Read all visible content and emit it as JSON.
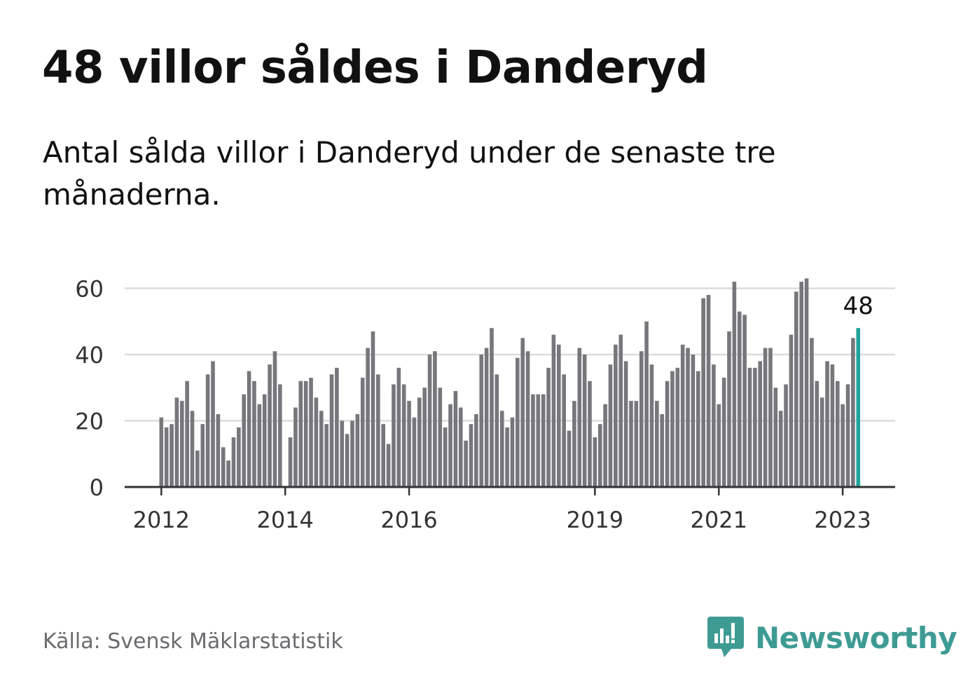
{
  "title": "48 villor såldes i Danderyd",
  "subtitle": "Antal sålda villor i Danderyd under de senaste tre månaderna.",
  "source": "Källa: Svensk Mäklarstatistik",
  "brand": "Newsworthy",
  "colors": {
    "bar": "#77767b",
    "highlight": "#1fa39b",
    "grid": "#dcdcdc",
    "axis": "#333333",
    "brand": "#3e9b94",
    "text": "#111111",
    "muted": "#6b6b70"
  },
  "icons": [
    "newsworthy-logo-icon"
  ],
  "chart_data": {
    "type": "bar",
    "title": "48 villor såldes i Danderyd",
    "xlabel": "",
    "ylabel": "",
    "ylim": [
      0,
      63
    ],
    "yticks": [
      0,
      20,
      40,
      60
    ],
    "xticks": [
      {
        "label": "2012",
        "index": 0
      },
      {
        "label": "2014",
        "index": 24
      },
      {
        "label": "2016",
        "index": 48
      },
      {
        "label": "2019",
        "index": 84
      },
      {
        "label": "2021",
        "index": 108
      },
      {
        "label": "2023",
        "index": 132
      }
    ],
    "start": "2012-01",
    "highlight_index": 135,
    "highlight_label": "48",
    "values": [
      21,
      18,
      19,
      27,
      26,
      32,
      23,
      11,
      19,
      34,
      38,
      22,
      12,
      8,
      15,
      18,
      28,
      35,
      32,
      25,
      28,
      37,
      41,
      31,
      0,
      15,
      24,
      32,
      32,
      33,
      27,
      23,
      19,
      34,
      36,
      20,
      16,
      20,
      22,
      33,
      42,
      47,
      34,
      19,
      13,
      31,
      36,
      31,
      26,
      21,
      27,
      30,
      40,
      41,
      30,
      18,
      25,
      29,
      24,
      14,
      19,
      22,
      40,
      42,
      48,
      34,
      23,
      18,
      21,
      39,
      45,
      41,
      28,
      28,
      28,
      36,
      46,
      43,
      34,
      17,
      26,
      42,
      40,
      32,
      15,
      19,
      25,
      37,
      43,
      46,
      38,
      26,
      26,
      41,
      50,
      37,
      26,
      22,
      32,
      35,
      36,
      43,
      42,
      40,
      35,
      57,
      58,
      37,
      25,
      33,
      47,
      62,
      53,
      52,
      36,
      36,
      38,
      42,
      42,
      30,
      23,
      31,
      46,
      59,
      62,
      63,
      45,
      32,
      27,
      38,
      37,
      32,
      25,
      31,
      45,
      48
    ]
  }
}
